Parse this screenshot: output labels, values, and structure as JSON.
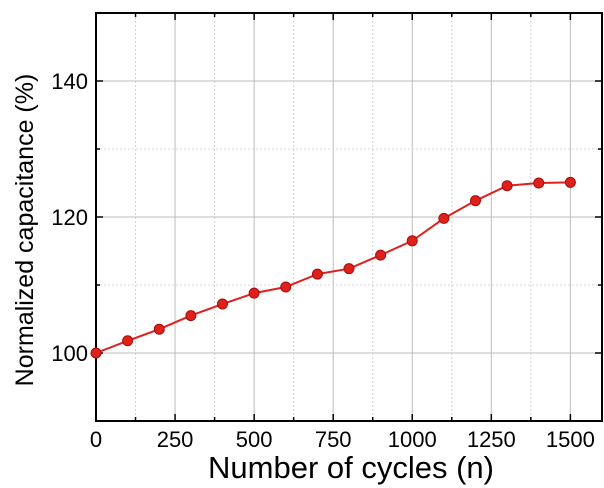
{
  "chart_data": {
    "type": "line",
    "title": "",
    "xlabel": "Number of cycles (n)",
    "ylabel": "Normalized capacitance (%)",
    "xlim": [
      0,
      1600
    ],
    "ylim": [
      90,
      150
    ],
    "xticks": [
      0,
      250,
      500,
      750,
      1000,
      1250,
      1500
    ],
    "yticks": [
      100,
      120,
      140
    ],
    "grid": true,
    "series": [
      {
        "color": "#e0201b",
        "x": [
          0,
          100,
          200,
          300,
          400,
          500,
          600,
          700,
          800,
          900,
          1000,
          1100,
          1200,
          1300,
          1400,
          1500
        ],
        "values": [
          100.0,
          101.8,
          103.5,
          105.5,
          107.2,
          108.8,
          109.7,
          111.6,
          112.4,
          114.4,
          116.5,
          119.8,
          122.4,
          124.6,
          125.0,
          125.1
        ]
      }
    ]
  }
}
